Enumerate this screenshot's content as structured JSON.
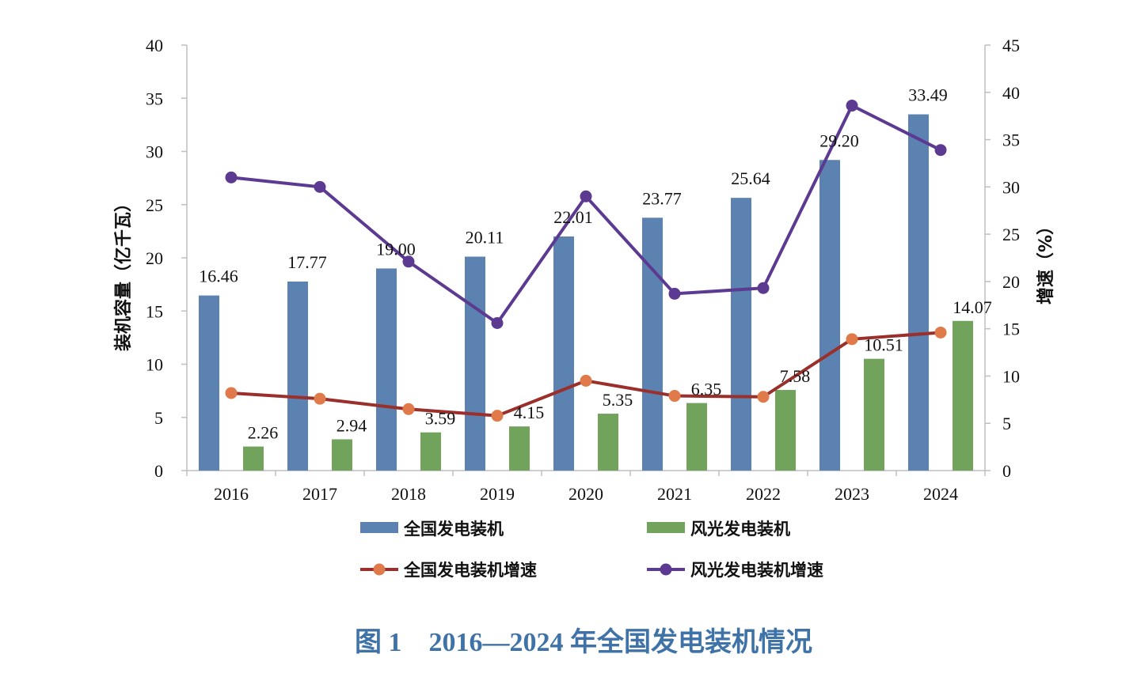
{
  "colors": {
    "bar_total": "#5b82b0",
    "bar_wind_solar": "#72a35d",
    "line_total": "#9a2f2b",
    "marker_total": "#e07a4a",
    "line_wind_solar": "#5c3a92",
    "axis": "#bfbfbf",
    "caption": "#3f73a8"
  },
  "chart_data": {
    "type": "bar",
    "categories": [
      "2016",
      "2017",
      "2018",
      "2019",
      "2020",
      "2021",
      "2022",
      "2023",
      "2024"
    ],
    "series": [
      {
        "name": "全国发电装机",
        "type": "bar",
        "axis": "left",
        "values": [
          16.46,
          17.77,
          19.0,
          20.11,
          22.01,
          23.77,
          25.64,
          29.2,
          33.49
        ],
        "labels": [
          "16.46",
          "17.77",
          "19.00",
          "20.11",
          "22.01",
          "23.77",
          "25.64",
          "29.20",
          "33.49"
        ]
      },
      {
        "name": "风光发电装机",
        "type": "bar",
        "axis": "left",
        "values": [
          2.26,
          2.94,
          3.59,
          4.15,
          5.35,
          6.35,
          7.58,
          10.51,
          14.07
        ],
        "labels": [
          "2.26",
          "2.94",
          "3.59",
          "4.15",
          "5.35",
          "6.35",
          "7.58",
          "10.51",
          "14.07"
        ]
      },
      {
        "name": "全国发电装机增速",
        "type": "line",
        "axis": "right",
        "values": [
          8.2,
          7.6,
          6.5,
          5.8,
          9.5,
          7.9,
          7.8,
          13.9,
          14.6
        ]
      },
      {
        "name": "风光发电装机增速",
        "type": "line",
        "axis": "right",
        "values": [
          31.0,
          30.0,
          22.1,
          15.6,
          29.0,
          18.7,
          19.3,
          38.6,
          33.9
        ]
      }
    ],
    "ylabel": "装机容量（亿千瓦）",
    "y2label": "增速（%）",
    "ylim": [
      0,
      40
    ],
    "y2lim": [
      0,
      45
    ],
    "yticks": [
      "0",
      "5",
      "10",
      "15",
      "20",
      "25",
      "30",
      "35",
      "40"
    ],
    "y2ticks": [
      "0",
      "5",
      "10",
      "15",
      "20",
      "25",
      "30",
      "35",
      "40",
      "45"
    ],
    "grid": false,
    "legend": "bottom",
    "caption": "图 1　2016—2024 年全国发电装机情况"
  }
}
